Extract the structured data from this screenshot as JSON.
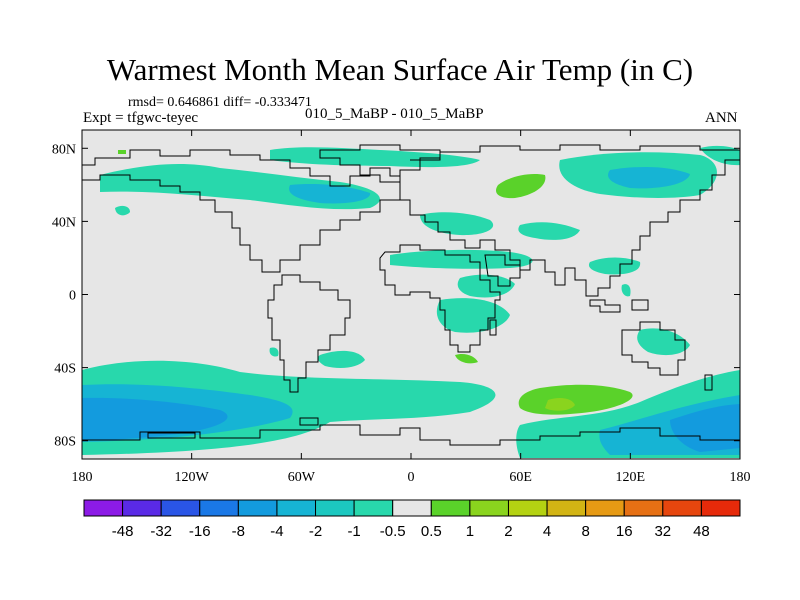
{
  "title": "Warmest Month Mean Surface Air Temp (in C)",
  "stats": "rmsd= 0.646861 diff= -0.333471",
  "expt": "Expt = tfgwc-teyec",
  "cases": "010_5_MaBP - 010_5_MaBP",
  "season": "ANN",
  "map": {
    "land_color": "#e6e6e6",
    "x_ticks": [
      "180",
      "120W",
      "60W",
      "0",
      "60E",
      "120E",
      "180"
    ],
    "y_ticks": [
      "80N",
      "40N",
      "0",
      "40S",
      "80S"
    ]
  },
  "colorbar": {
    "labels": [
      "-48",
      "-32",
      "-16",
      "-8",
      "-4",
      "-2",
      "-1",
      "-0.5",
      "0.5",
      "1",
      "2",
      "4",
      "8",
      "16",
      "32",
      "48"
    ],
    "colors": [
      "#8c1be6",
      "#5a2ae6",
      "#2a55e6",
      "#1a78e6",
      "#139bde",
      "#16b4d4",
      "#1cc8c0",
      "#28d8ac",
      "#e6e6e6",
      "#5ad22a",
      "#8ad41e",
      "#b4d212",
      "#d2b414",
      "#e69a14",
      "#e67014",
      "#e6460e",
      "#e62a0a"
    ]
  },
  "anomaly_colors": {
    "cyan_light": "#28d8ac",
    "cyan": "#1cc8c0",
    "blue_light": "#16b4d4",
    "blue": "#139bde",
    "green": "#5ad22a",
    "yellow_green": "#8ad41e"
  }
}
